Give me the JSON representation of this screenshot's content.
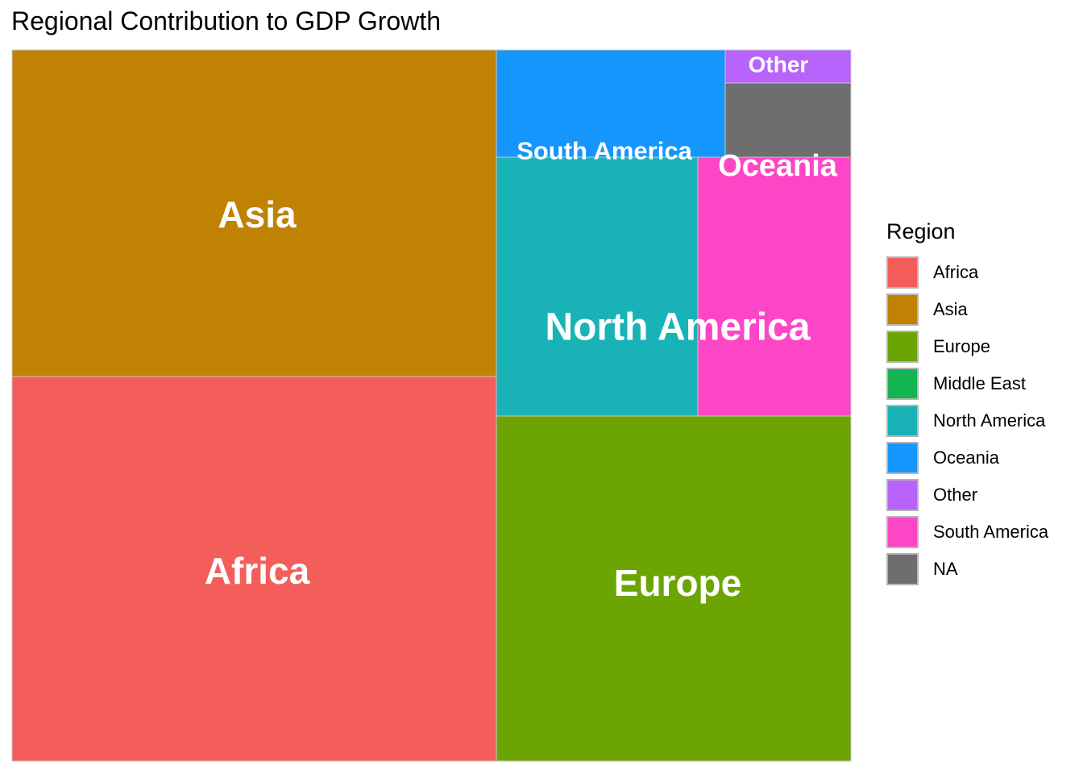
{
  "chart_data": {
    "type": "treemap",
    "title": "Regional Contribution to GDP Growth",
    "tiles": [
      {
        "label": "Asia",
        "fill_region": "Asia",
        "value": 240
      },
      {
        "label": "Africa",
        "fill_region": "Africa",
        "value": 286
      },
      {
        "label": "Europe",
        "fill_region": "Europe",
        "value": 187
      },
      {
        "label": "North America",
        "fill_region": "North America",
        "value": 80
      },
      {
        "label": "Oceania",
        "fill_region": "South America",
        "value": 60
      },
      {
        "label": "South America",
        "fill_region": "Oceania",
        "value": 37
      },
      {
        "label": "Other",
        "fill_region": "Other",
        "value": 6
      },
      {
        "label": "",
        "fill_region": "NA",
        "value": 14
      }
    ],
    "legend": {
      "title": "Region",
      "position": "right",
      "items": [
        {
          "label": "Africa",
          "color": "#F35E5A"
        },
        {
          "label": "Asia",
          "color": "#C08203"
        },
        {
          "label": "Europe",
          "color": "#6CA503"
        },
        {
          "label": "Middle East",
          "color": "#14B452"
        },
        {
          "label": "North America",
          "color": "#19B3B7"
        },
        {
          "label": "Oceania",
          "color": "#1596FD"
        },
        {
          "label": "Other",
          "color": "#B863FB"
        },
        {
          "label": "South America",
          "color": "#FD46C6"
        },
        {
          "label": "NA",
          "color": "#6E6E6E"
        }
      ]
    }
  }
}
